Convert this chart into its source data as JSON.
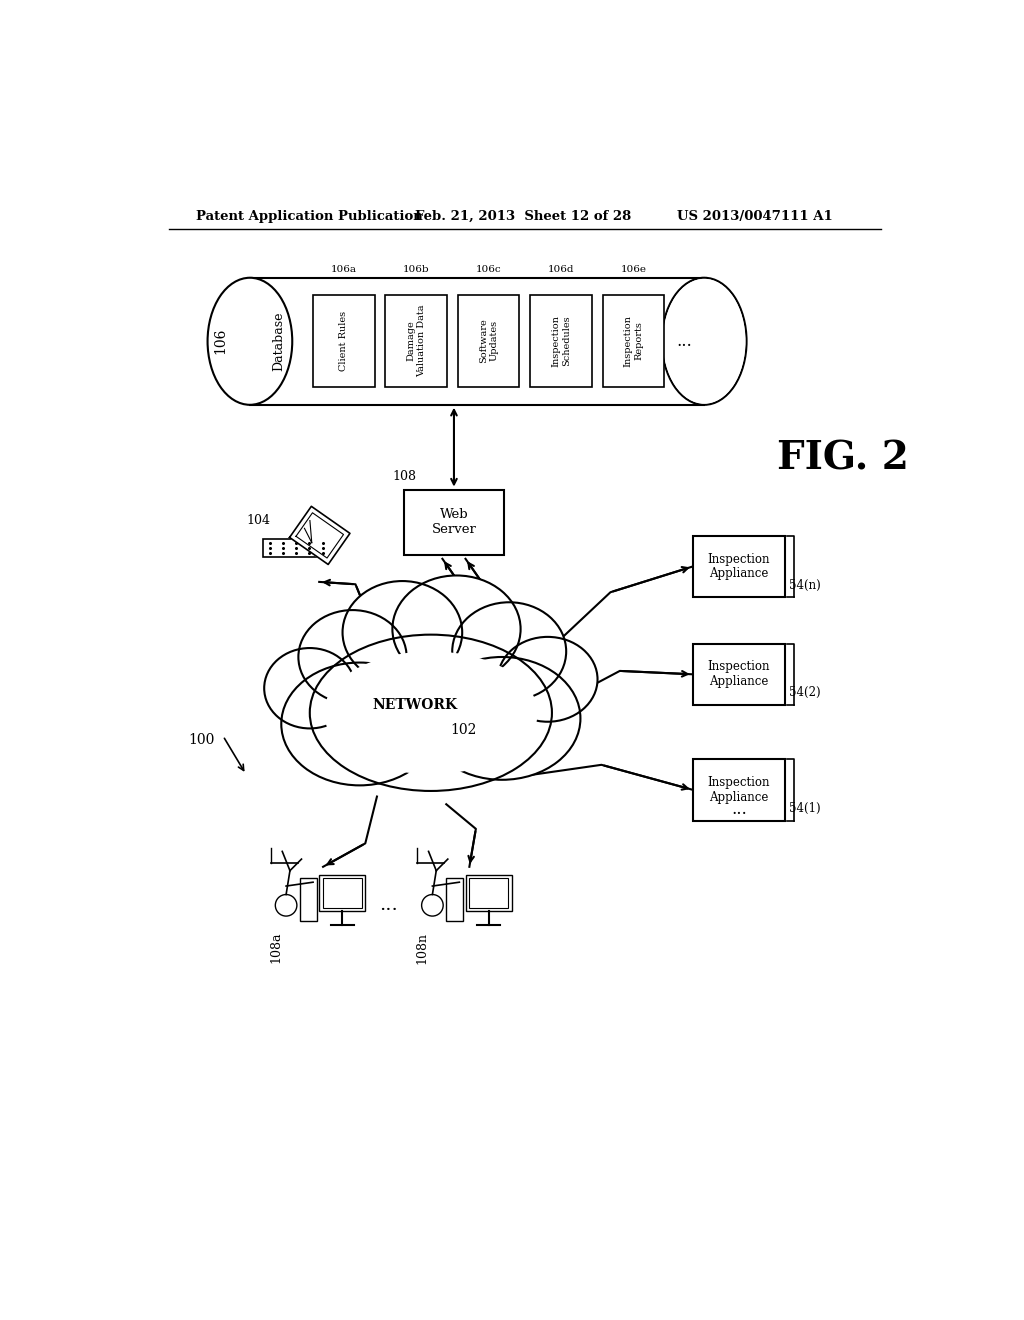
{
  "header_left": "Patent Application Publication",
  "header_center": "Feb. 21, 2013  Sheet 12 of 28",
  "header_right": "US 2013/0047111 A1",
  "fig_label": "FIG. 2",
  "background": "#ffffff",
  "db_label": "106",
  "db_text": "Database",
  "db_columns": [
    {
      "id": "106a",
      "text": "Client Rules"
    },
    {
      "id": "106b",
      "text": "Damage\nValuation Data"
    },
    {
      "id": "106c",
      "text": "Software\nUpdates"
    },
    {
      "id": "106d",
      "text": "Inspection\nSchedules"
    },
    {
      "id": "106e",
      "text": "Inspection\nReports"
    }
  ],
  "db_ellipsis": "...",
  "webserver_label": "108",
  "webserver_text": "Web\nServer",
  "laptop_label": "104",
  "network_text": "NETWORK",
  "network_label": "102",
  "inspection_boxes": [
    {
      "id": "54(n)",
      "text": "Inspection\nAppliance"
    },
    {
      "id": "54(2)",
      "text": "Inspection\nAppliance"
    },
    {
      "id": "54(1)",
      "text": "Inspection\nAppliance"
    }
  ],
  "workstations": [
    {
      "label": "108a"
    },
    {
      "label": "108n"
    }
  ],
  "system_label": "100"
}
